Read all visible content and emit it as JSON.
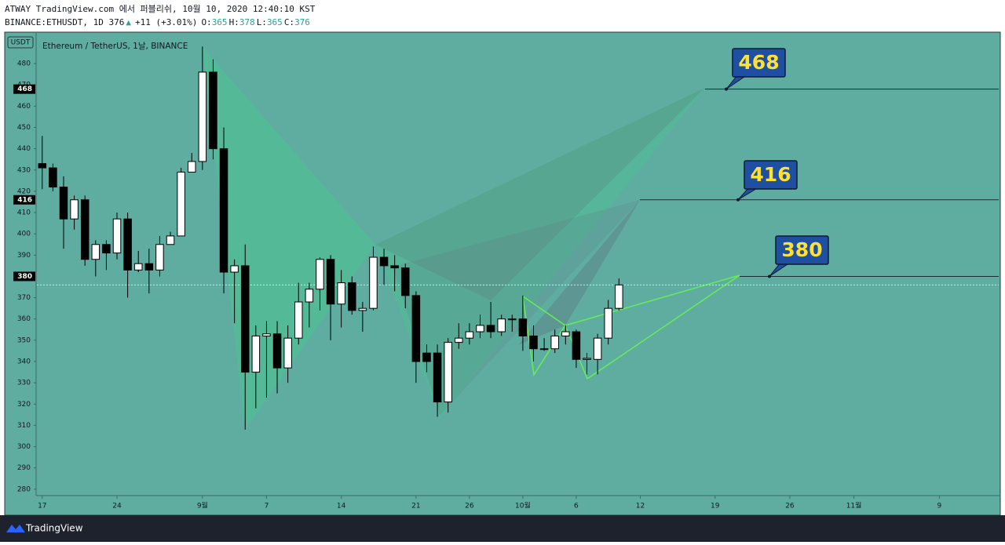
{
  "header": {
    "line1": "ATWAY TradingView.com 에서 퍼블리쉬, 10월 10, 2020 12:40:10 KST",
    "symbol": "BINANCE:ETHUSDT, 1D 376",
    "arrow": "▲",
    "change": "+11 (+3.01%)",
    "ohlc": [
      {
        "label": "O:",
        "value": "365"
      },
      {
        "label": "H:",
        "value": "378"
      },
      {
        "label": "L:",
        "value": "365"
      },
      {
        "label": "C:",
        "value": "376"
      }
    ]
  },
  "footer": {
    "brand": "TradingView"
  },
  "chart_data": {
    "type": "candlestick",
    "title": "Ethereum / TetherUS, 1날, BINANCE",
    "y_axis_label": "USDT",
    "x": [
      0,
      1,
      2,
      3,
      4,
      5,
      6,
      7,
      8,
      9,
      10,
      11,
      12,
      13,
      14,
      15,
      16,
      17,
      18,
      19,
      20,
      21,
      22,
      23,
      24,
      25,
      26,
      27,
      28,
      29,
      30,
      31,
      32,
      33,
      34,
      35,
      36,
      37,
      38,
      39,
      40,
      41,
      42,
      43,
      44,
      45,
      46,
      47,
      48,
      49,
      50,
      51,
      52,
      53,
      54
    ],
    "open": [
      433,
      431,
      422,
      407,
      416,
      388,
      395,
      391,
      407,
      383,
      386,
      383,
      395,
      399,
      429,
      434,
      476,
      440,
      382,
      385,
      335,
      352,
      353,
      337,
      351,
      368,
      374,
      388,
      367,
      377,
      364,
      365,
      389,
      385,
      384,
      371,
      344,
      344,
      321,
      349,
      351,
      354,
      357,
      354,
      360,
      360,
      352,
      346,
      346,
      352,
      354,
      341,
      341,
      351,
      365
    ],
    "high": [
      446,
      433,
      427,
      418,
      418,
      397,
      397,
      410,
      410,
      392,
      393,
      399,
      401,
      431,
      438,
      488,
      482,
      450,
      388,
      395,
      357,
      359,
      359,
      357,
      377,
      377,
      389,
      390,
      383,
      380,
      368,
      394,
      393,
      390,
      386,
      373,
      348,
      348,
      351,
      358,
      358,
      362,
      368,
      362,
      362,
      371,
      357,
      351,
      355,
      357,
      355,
      344,
      353,
      369,
      379
    ],
    "low": [
      421,
      420,
      393,
      402,
      385,
      380,
      383,
      388,
      370,
      382,
      372,
      380,
      395,
      399,
      430,
      430,
      435,
      372,
      358,
      308,
      318,
      323,
      325,
      330,
      348,
      356,
      364,
      350,
      356,
      362,
      354,
      364,
      376,
      373,
      365,
      330,
      335,
      314,
      316,
      346,
      348,
      351,
      351,
      352,
      354,
      345,
      340,
      345,
      344,
      348,
      337,
      334,
      334,
      348,
      364
    ],
    "close": [
      431,
      422,
      407,
      416,
      388,
      395,
      391,
      407,
      383,
      386,
      383,
      395,
      399,
      429,
      434,
      476,
      440,
      382,
      385,
      335,
      352,
      353,
      337,
      351,
      368,
      374,
      388,
      367,
      377,
      364,
      365,
      389,
      385,
      384,
      371,
      340,
      340,
      321,
      349,
      351,
      354,
      357,
      354,
      360,
      360,
      352,
      346,
      346,
      352,
      354,
      341,
      341.5,
      351,
      365,
      376
    ],
    "up_color": "#ffffff",
    "down_color": "#000000",
    "wick_color": "#000000",
    "xlim": [
      -0.5,
      89.56
    ],
    "xticks": [
      {
        "value": 0,
        "label": "17"
      },
      {
        "value": 7,
        "label": "24"
      },
      {
        "value": 15,
        "label": "9월"
      },
      {
        "value": 21,
        "label": "7"
      },
      {
        "value": 28,
        "label": "14"
      },
      {
        "value": 35,
        "label": "21"
      },
      {
        "value": 40,
        "label": "26"
      },
      {
        "value": 45,
        "label": "10월"
      },
      {
        "value": 50,
        "label": "6"
      },
      {
        "value": 56,
        "label": "12"
      },
      {
        "value": 63,
        "label": "19"
      },
      {
        "value": 70,
        "label": "26"
      },
      {
        "value": 76,
        "label": "11월"
      },
      {
        "value": 84,
        "label": "9"
      }
    ],
    "ylim": [
      277,
      494.4
    ],
    "yticks": [
      280,
      290,
      300,
      310,
      320,
      330,
      340,
      350,
      360,
      370,
      380,
      390,
      400,
      410,
      420,
      430,
      440,
      450,
      460,
      470,
      480
    ],
    "levels": [
      468,
      416,
      380
    ],
    "level_color": "#1f4fa0"
  }
}
